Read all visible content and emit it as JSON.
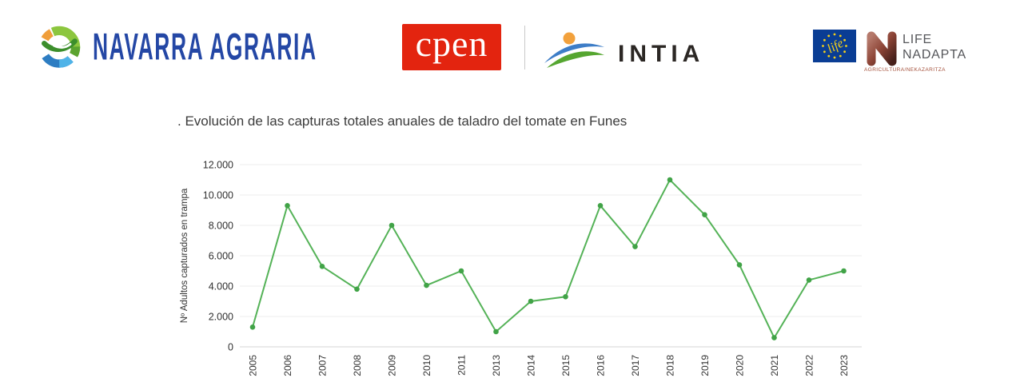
{
  "header": {
    "navarra_agraria": {
      "wordmark": "NAVARRA AGRARIA"
    },
    "cpen": {
      "wordmark": "cpen"
    },
    "intia": {
      "wordmark": "INTIA"
    },
    "life_nadapta": {
      "flag_script": "life",
      "line1": "LIFE",
      "line2": "NADAPTA",
      "subtitle": "AGRICULTURA/NEKAZARITZA"
    }
  },
  "chart_data": {
    "type": "line",
    "title": ". Evolución de las capturas totales anuales de taladro del tomate en Funes",
    "categories": [
      "2005",
      "2006",
      "2007",
      "2008",
      "2009",
      "2010",
      "2011",
      "2013",
      "2014",
      "2015",
      "2016",
      "2017",
      "2018",
      "2019",
      "2020",
      "2021",
      "2022",
      "2023"
    ],
    "values": [
      1300,
      9300,
      5300,
      3800,
      8000,
      4050,
      5000,
      1000,
      3000,
      3300,
      9300,
      6600,
      11000,
      8700,
      5400,
      600,
      4400,
      5000
    ],
    "xlabel": "",
    "ylabel": "Nº Adultos capturados en trampa",
    "ylim": [
      0,
      12000
    ],
    "ytick_step": 2000,
    "ytick_labels": [
      "0",
      "2.000",
      "4.000",
      "6.000",
      "8.000",
      "10.000",
      "12.000"
    ],
    "grid": true,
    "legend": "none",
    "line_color": "#54B257",
    "marker_color": "#41A347",
    "grid_color": "#EDEDED",
    "axis_color": "#D6D6D6"
  },
  "colors": {
    "navarra_blue": "#2447A5",
    "cpen_red": "#E3240F",
    "intia_dark": "#2B2724",
    "eu_blue": "#0A3D94",
    "star_yellow": "#F7D117",
    "nadapta_text": "#55565A",
    "agri_red": "#A5523C"
  }
}
